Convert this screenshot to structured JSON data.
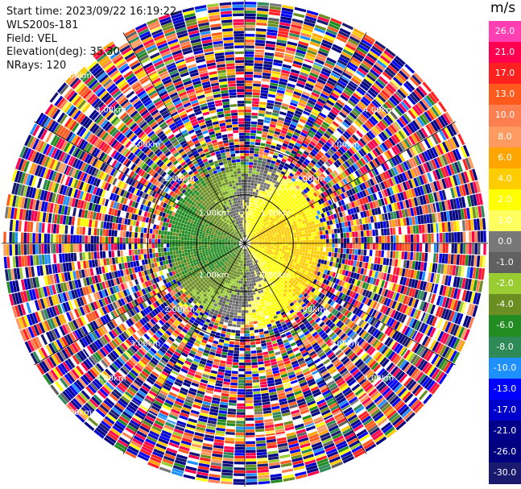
{
  "header": {
    "start_time": "Start time: 2023/09/22 16:19:22",
    "instrument": "WLS200s-181",
    "field": "Field: VEL",
    "elevation": "Elevation(deg): 35.30",
    "nrays": "NRays: 120"
  },
  "colorbar": {
    "unit": "m/s",
    "labels": [
      "26.0",
      "21.0",
      "17.0",
      "13.0",
      "10.0",
      "8.0",
      "6.0",
      "4.0",
      "2.0",
      "1.0",
      "0.0",
      "-1.0",
      "-2.0",
      "-4.0",
      "-6.0",
      "-8.0",
      "-10.0",
      "-13.0",
      "-17.0",
      "-21.0",
      "-26.0",
      "-30.0"
    ],
    "colors": [
      "#ff3fb2",
      "#ff0050",
      "#ff2020",
      "#ff5a1e",
      "#ff7f50",
      "#ff9a60",
      "#ffa500",
      "#ffcc00",
      "#ffff00",
      "#ffff60",
      "#787878",
      "#606060",
      "#9acd32",
      "#6b8e23",
      "#228b22",
      "#2e8b57",
      "#1e90ff",
      "#0000ff",
      "#0000cd",
      "#00008b",
      "#000080",
      "#191970"
    ]
  },
  "chart_data": {
    "type": "heatmap",
    "title": "",
    "field": "VEL",
    "units": "m/s",
    "value_range": [
      -30.0,
      26.0
    ],
    "rays": 120,
    "range_rings_km": [
      1.0,
      2.0,
      3.0,
      4.0,
      5.0
    ],
    "ring_labels": [
      "1.00km",
      "2.00km",
      "3.00km",
      "4.00km",
      "5.00km"
    ],
    "ring_labels_visible": [
      "1.00km",
      "1.00km",
      "1.00km",
      "1.00km",
      "2.00km",
      "2.00km",
      "2.00km",
      "2.00km",
      "3.00km",
      "3.00km",
      "3.00km",
      "3.00km",
      "4.00km",
      "4.00km",
      "4.00km",
      "4.00km",
      "5.00km",
      "5.00km"
    ],
    "radial_spokes_deg": [
      0,
      30,
      60,
      90,
      120,
      150,
      180,
      210,
      240,
      270,
      300,
      330
    ],
    "max_range_km": 5.0,
    "pattern": {
      "inner_negative_sector": "west (green, -2 to -8 m/s)",
      "inner_positive_sector": "east (yellow/orange, 2 to 6 m/s)",
      "outer_ranges": "noisy mix of all colors beyond ~1.6 km"
    }
  }
}
